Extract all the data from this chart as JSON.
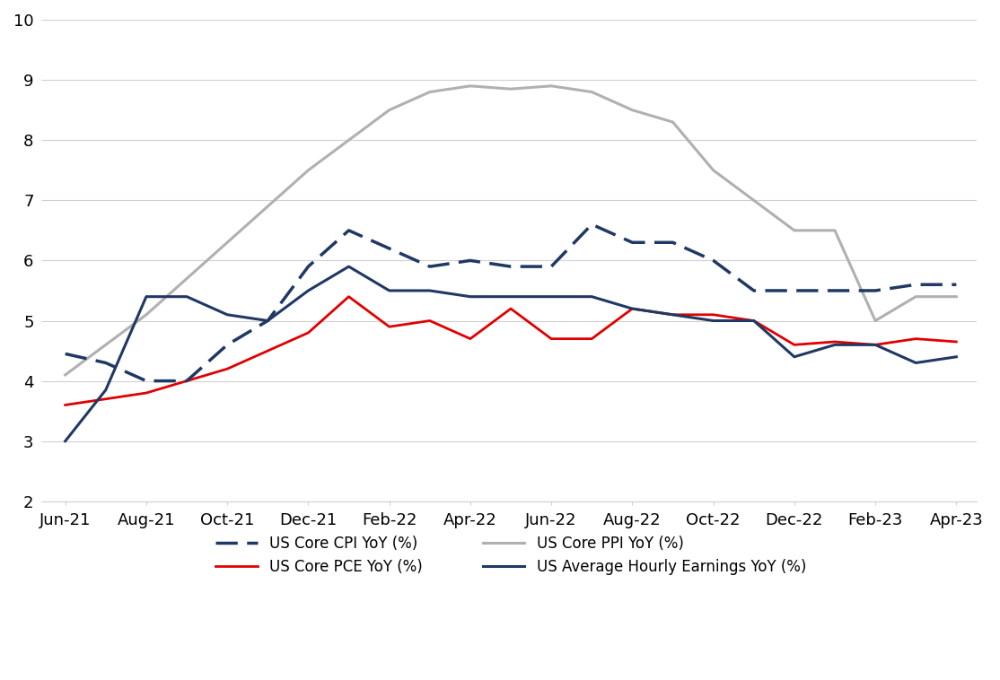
{
  "x_labels": [
    "Jun-21",
    "Aug-21",
    "Oct-21",
    "Dec-21",
    "Feb-22",
    "Apr-22",
    "Jun-22",
    "Aug-22",
    "Oct-22",
    "Dec-22",
    "Feb-23",
    "Apr-23"
  ],
  "x_tick_positions": [
    0,
    2,
    4,
    6,
    8,
    10,
    12,
    14,
    16,
    18,
    20,
    22
  ],
  "core_cpi": {
    "label": "US Core CPI YoY (%)",
    "color": "#1f3864",
    "x": [
      0,
      1,
      2,
      3,
      4,
      5,
      6,
      7,
      8,
      9,
      10,
      11,
      12,
      13,
      14,
      15,
      16,
      17,
      18,
      19,
      20,
      21,
      22
    ],
    "y": [
      4.45,
      4.3,
      4.0,
      4.0,
      4.6,
      5.0,
      5.9,
      6.5,
      6.2,
      5.9,
      6.0,
      5.9,
      5.9,
      6.6,
      6.3,
      6.3,
      6.0,
      5.5,
      5.5,
      5.5,
      5.5,
      5.6,
      5.6
    ]
  },
  "core_pce": {
    "label": "US Core PCE YoY (%)",
    "color": "#e00000",
    "x": [
      0,
      1,
      2,
      3,
      4,
      5,
      6,
      7,
      8,
      9,
      10,
      11,
      12,
      13,
      14,
      15,
      16,
      17,
      18,
      19,
      20,
      21,
      22
    ],
    "y": [
      3.6,
      3.7,
      3.8,
      4.0,
      4.2,
      4.5,
      4.8,
      5.4,
      4.9,
      5.0,
      4.7,
      5.2,
      4.7,
      4.7,
      5.2,
      5.1,
      5.1,
      5.0,
      4.6,
      4.65,
      4.6,
      4.7,
      4.65
    ]
  },
  "core_ppi": {
    "label": "US Core PPI YoY (%)",
    "color": "#b0b0b0",
    "x": [
      0,
      1,
      2,
      3,
      4,
      5,
      6,
      7,
      8,
      9,
      10,
      11,
      12,
      13,
      14,
      15,
      16,
      17,
      18,
      19,
      20,
      21,
      22
    ],
    "y": [
      4.1,
      4.6,
      5.1,
      5.7,
      6.3,
      6.9,
      7.5,
      8.0,
      8.5,
      8.8,
      8.9,
      8.85,
      8.9,
      8.8,
      8.5,
      8.3,
      7.5,
      7.0,
      6.5,
      6.5,
      5.0,
      5.4,
      5.4
    ]
  },
  "avg_hourly": {
    "label": "US Average Hourly Earnings YoY (%)",
    "color": "#1f3864",
    "x": [
      0,
      1,
      2,
      3,
      4,
      5,
      6,
      7,
      8,
      9,
      10,
      11,
      12,
      13,
      14,
      15,
      16,
      17,
      18,
      19,
      20,
      21,
      22
    ],
    "y": [
      3.0,
      3.85,
      5.4,
      5.4,
      5.1,
      5.0,
      5.5,
      5.9,
      5.5,
      5.5,
      5.4,
      5.4,
      5.4,
      5.4,
      5.2,
      5.1,
      5.0,
      5.0,
      4.4,
      4.6,
      4.6,
      4.3,
      4.4
    ]
  },
  "ylim": [
    2,
    10
  ],
  "yticks": [
    2,
    3,
    4,
    5,
    6,
    7,
    8,
    9,
    10
  ],
  "background_color": "#ffffff",
  "grid_color": "#d0d0d0"
}
